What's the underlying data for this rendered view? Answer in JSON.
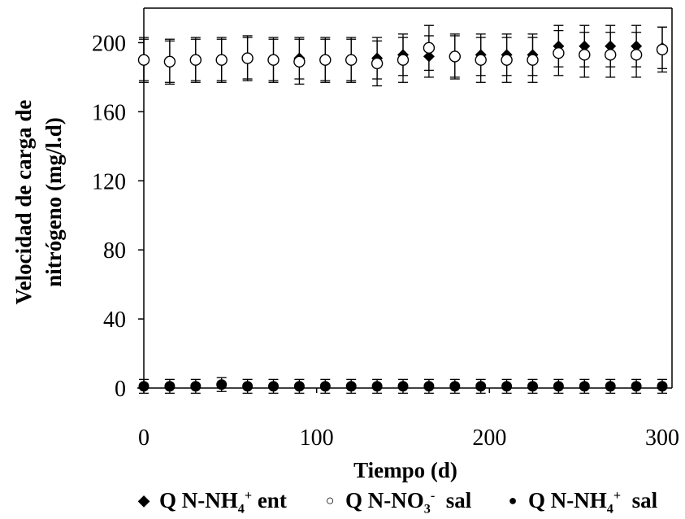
{
  "chart_data": {
    "type": "scatter",
    "title": "",
    "xlabel": "Tiempo (d)",
    "ylabel_lines": [
      "Velocidad de carga de",
      "nitrógeno (mg/l.d)"
    ],
    "xlim": [
      0,
      300
    ],
    "ylim": [
      0,
      220
    ],
    "x_ticks": [
      0,
      100,
      200,
      300
    ],
    "y_ticks": [
      0,
      40,
      80,
      120,
      160,
      200
    ],
    "grid": false,
    "legend_position": "bottom",
    "series": [
      {
        "name": "Q N-NH4+ ent",
        "legend_parts": [
          "Q N-NH",
          "4",
          "+",
          "ent"
        ],
        "marker": "diamond-filled",
        "color": "#000000",
        "x": [
          0,
          15,
          30,
          45,
          60,
          75,
          90,
          105,
          120,
          135,
          150,
          165,
          180,
          195,
          210,
          225,
          240,
          255,
          270,
          285,
          300
        ],
        "y": [
          190,
          189,
          190,
          190,
          191,
          190,
          191,
          190,
          190,
          191,
          193,
          192,
          192,
          193,
          193,
          193,
          198,
          198,
          198,
          198,
          197
        ],
        "err": [
          12,
          12,
          12,
          12,
          12,
          12,
          12,
          12,
          12,
          12,
          12,
          12,
          12,
          12,
          12,
          12,
          12,
          12,
          12,
          12,
          12
        ]
      },
      {
        "name": "Q N-NO3- sal",
        "legend_parts": [
          "Q N-NO",
          "3",
          "-",
          "sal"
        ],
        "marker": "circle-open",
        "color": "#000000",
        "x": [
          0,
          15,
          30,
          45,
          60,
          75,
          90,
          105,
          120,
          135,
          150,
          165,
          180,
          195,
          210,
          225,
          240,
          255,
          270,
          285,
          300
        ],
        "y": [
          190,
          189,
          190,
          190,
          191,
          190,
          189,
          190,
          190,
          188,
          190,
          197,
          192,
          190,
          190,
          190,
          194,
          193,
          193,
          193,
          196
        ],
        "err": [
          13,
          13,
          13,
          13,
          13,
          13,
          13,
          13,
          13,
          13,
          13,
          13,
          13,
          13,
          13,
          13,
          13,
          13,
          13,
          13,
          13
        ]
      },
      {
        "name": "Q N-NH4+ sal",
        "legend_parts": [
          "Q N-NH",
          "4",
          "+",
          "sal"
        ],
        "marker": "circle-filled",
        "color": "#000000",
        "x": [
          0,
          15,
          30,
          45,
          60,
          75,
          90,
          105,
          120,
          135,
          150,
          165,
          180,
          195,
          210,
          225,
          240,
          255,
          270,
          285,
          300
        ],
        "y": [
          1,
          1,
          1,
          2,
          1,
          1,
          1,
          1,
          1,
          1,
          1,
          1,
          1,
          1,
          1,
          1,
          1,
          1,
          1,
          1,
          1
        ],
        "err": [
          4,
          4,
          4,
          4,
          4,
          4,
          4,
          4,
          4,
          4,
          4,
          4,
          4,
          4,
          4,
          4,
          4,
          4,
          4,
          4,
          4
        ]
      }
    ]
  }
}
